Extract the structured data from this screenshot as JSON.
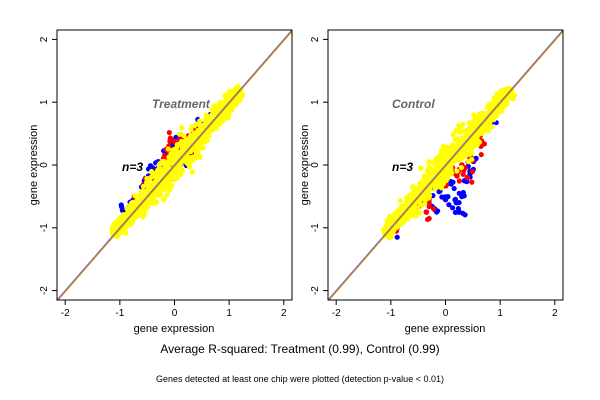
{
  "caption": "Average R-squared: Treatment (0.99), Control (0.99)",
  "footnote": "Genes detected at least one chip were plotted (detection p-value < 0.01)",
  "colors": {
    "series_blue": "#0000ff",
    "series_red": "#ff0000",
    "series_yellow": "#ffff00",
    "diagonal_orange": "#cc8800",
    "diagonal_blue": "#6666ff"
  },
  "chart_data": [
    {
      "type": "scatter",
      "title": "Treatment",
      "annotation": "n=3",
      "xlabel": "gene expression",
      "ylabel": "gene expression",
      "xlim": [
        -2.15,
        2.15
      ],
      "ylim": [
        -2.15,
        2.15
      ],
      "xticks": [
        "-2",
        "-1",
        "0",
        "1",
        "2"
      ],
      "yticks": [
        "-2",
        "-1",
        "0",
        "1",
        "2"
      ],
      "grid": false,
      "reference_line": "y = x",
      "series": [
        {
          "color": "blue",
          "points": [
            [
              -0.95,
              -0.72
            ],
            [
              -0.85,
              -0.85
            ],
            [
              -0.8,
              -0.6
            ],
            [
              -0.55,
              -0.25
            ],
            [
              -0.4,
              -0.05
            ],
            [
              -0.3,
              0.05
            ],
            [
              -0.2,
              -0.35
            ],
            [
              -0.1,
              0.25
            ],
            [
              0.0,
              0.3
            ],
            [
              0.1,
              0.35
            ],
            [
              0.25,
              0.45
            ],
            [
              0.3,
              0.15
            ],
            [
              0.45,
              0.5
            ],
            [
              0.55,
              0.65
            ],
            [
              0.7,
              0.75
            ],
            [
              -0.6,
              -0.35
            ],
            [
              -0.25,
              -0.15
            ],
            [
              0.15,
              0.05
            ]
          ]
        },
        {
          "color": "red",
          "points": [
            [
              -0.7,
              -0.65
            ],
            [
              -0.5,
              -0.3
            ],
            [
              -0.35,
              -0.15
            ],
            [
              -0.2,
              0.1
            ],
            [
              -0.1,
              0.2
            ],
            [
              -0.05,
              0.4
            ],
            [
              0.0,
              -0.15
            ],
            [
              0.1,
              0.4
            ],
            [
              0.2,
              0.35
            ],
            [
              0.3,
              0.2
            ],
            [
              0.35,
              0.55
            ],
            [
              0.5,
              0.45
            ],
            [
              0.6,
              0.55
            ],
            [
              0.75,
              0.7
            ],
            [
              -0.45,
              -0.45
            ],
            [
              0.05,
              0.15
            ],
            [
              0.4,
              0.3
            ]
          ]
        },
        {
          "color": "yellow",
          "trend": "dense band along y = x from -1.1 to 1.2",
          "points": [
            [
              -1.1,
              -1.1
            ],
            [
              -0.9,
              -0.9
            ],
            [
              -0.7,
              -0.7
            ],
            [
              -0.5,
              -0.5
            ],
            [
              -0.3,
              -0.3
            ],
            [
              -0.1,
              -0.1
            ],
            [
              0.1,
              0.1
            ],
            [
              0.3,
              0.3
            ],
            [
              0.5,
              0.5
            ],
            [
              0.7,
              0.7
            ],
            [
              0.9,
              0.9
            ],
            [
              1.1,
              1.1
            ],
            [
              1.2,
              1.2
            ],
            [
              -0.2,
              0.05
            ],
            [
              0.05,
              -0.2
            ],
            [
              -0.55,
              -0.6
            ],
            [
              -0.2,
              -0.55
            ],
            [
              0.6,
              0.65
            ]
          ]
        }
      ]
    },
    {
      "type": "scatter",
      "title": "Control",
      "annotation": "n=3",
      "xlabel": "gene expression",
      "ylabel": "gene expression",
      "xlim": [
        -2.15,
        2.15
      ],
      "ylim": [
        -2.15,
        2.15
      ],
      "xticks": [
        "-2",
        "-1",
        "0",
        "1",
        "2"
      ],
      "yticks": [
        "-2",
        "-1",
        "0",
        "1",
        "2"
      ],
      "grid": false,
      "reference_line": "y = x",
      "series": [
        {
          "color": "blue",
          "points": [
            [
              -0.95,
              -1.0
            ],
            [
              -0.8,
              -0.85
            ],
            [
              -0.6,
              -0.75
            ],
            [
              -0.45,
              -0.6
            ],
            [
              -0.3,
              -0.5
            ],
            [
              -0.1,
              -0.4
            ],
            [
              0.0,
              -0.55
            ],
            [
              0.1,
              -0.3
            ],
            [
              0.2,
              -0.6
            ],
            [
              0.3,
              -0.5
            ],
            [
              0.35,
              -0.25
            ],
            [
              0.45,
              -0.1
            ],
            [
              0.55,
              0.1
            ],
            [
              0.6,
              0.5
            ],
            [
              0.75,
              0.7
            ],
            [
              0.25,
              -0.75
            ],
            [
              -0.2,
              -0.7
            ]
          ]
        },
        {
          "color": "red",
          "points": [
            [
              -0.9,
              -1.05
            ],
            [
              -0.7,
              -0.8
            ],
            [
              -0.5,
              -0.65
            ],
            [
              -0.3,
              -0.55
            ],
            [
              -0.15,
              -0.25
            ],
            [
              0.0,
              -0.3
            ],
            [
              0.1,
              -0.05
            ],
            [
              0.2,
              -0.15
            ],
            [
              0.3,
              0.0
            ],
            [
              0.4,
              -0.2
            ],
            [
              0.45,
              0.1
            ],
            [
              0.55,
              0.35
            ],
            [
              0.65,
              0.3
            ],
            [
              0.7,
              0.6
            ],
            [
              -0.35,
              -0.75
            ]
          ]
        },
        {
          "color": "yellow",
          "trend": "dense band along y = x from -1.1 to 1.2",
          "points": [
            [
              -1.1,
              -1.1
            ],
            [
              -0.9,
              -0.9
            ],
            [
              -0.7,
              -0.7
            ],
            [
              -0.5,
              -0.5
            ],
            [
              -0.3,
              -0.3
            ],
            [
              -0.1,
              -0.1
            ],
            [
              0.1,
              0.1
            ],
            [
              0.3,
              0.3
            ],
            [
              0.5,
              0.5
            ],
            [
              0.7,
              0.7
            ],
            [
              0.9,
              0.9
            ],
            [
              1.1,
              1.1
            ],
            [
              1.2,
              1.2
            ],
            [
              -0.3,
              0.05
            ],
            [
              -0.45,
              -0.05
            ],
            [
              -0.6,
              -0.35
            ],
            [
              0.4,
              0.55
            ]
          ]
        }
      ]
    }
  ]
}
